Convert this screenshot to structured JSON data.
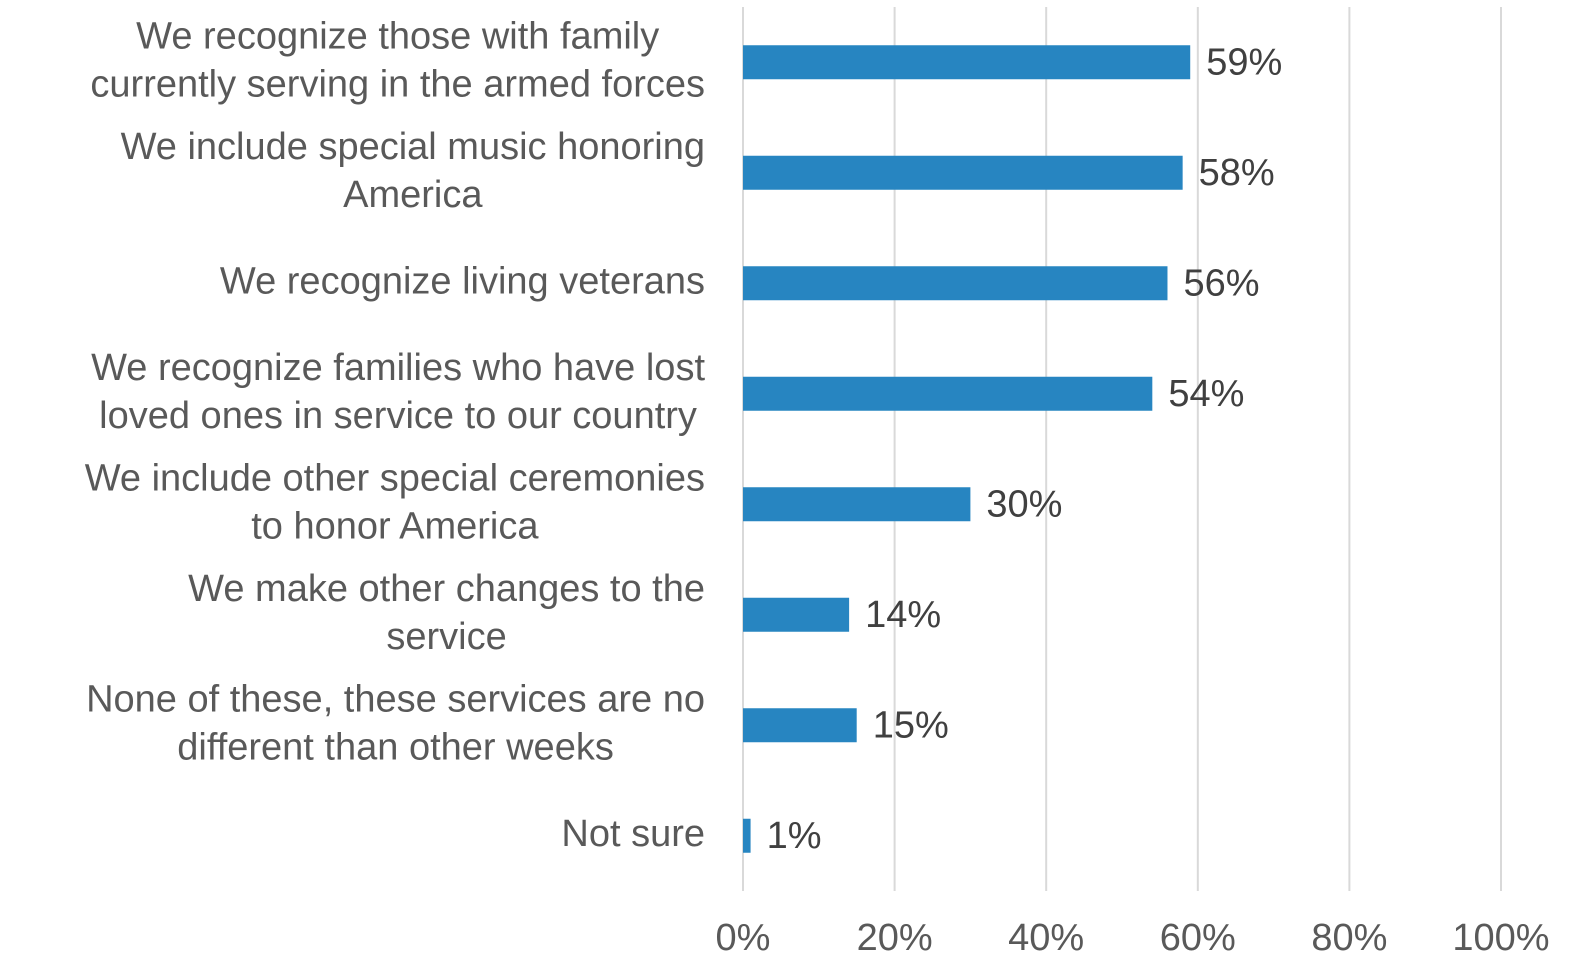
{
  "chart_data": {
    "type": "barh",
    "categories": [
      "We recognize those with family\ncurrently serving in the armed forces",
      "We include special music honoring\nAmerica",
      "We recognize living veterans",
      "We recognize families who have lost\nloved ones in service to our country",
      "We include other special ceremonies\nto honor America",
      "We make other changes to the\nservice",
      "None of these, these services are no\ndifferent than other weeks",
      "Not sure"
    ],
    "values": [
      59,
      58,
      56,
      54,
      30,
      14,
      15,
      1
    ],
    "value_labels": [
      "59%",
      "58%",
      "56%",
      "54%",
      "30%",
      "14%",
      "15%",
      "1%"
    ],
    "color": "#2785c1",
    "xlim": [
      0,
      100
    ],
    "xticks": [
      {
        "value": 0,
        "label": "0%"
      },
      {
        "value": 20,
        "label": "20%"
      },
      {
        "value": 40,
        "label": "40%"
      },
      {
        "value": 60,
        "label": "60%"
      },
      {
        "value": 80,
        "label": "80%"
      },
      {
        "value": 100,
        "label": "100%"
      }
    ],
    "grid": true
  }
}
